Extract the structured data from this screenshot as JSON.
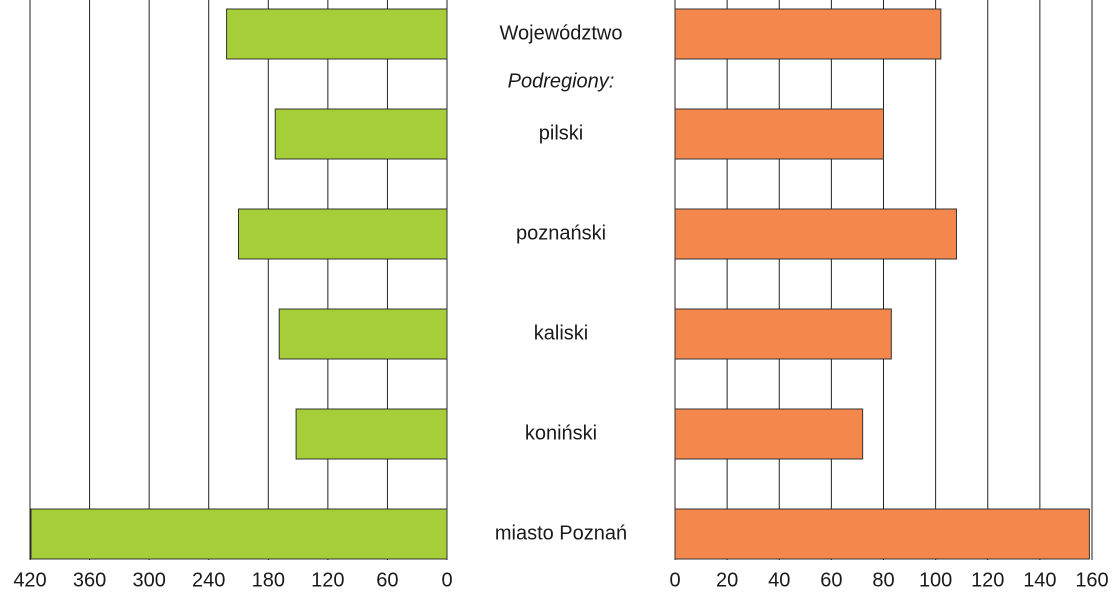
{
  "chart_data": {
    "type": "bar",
    "orientation": "horizontal",
    "categories": [
      "Województwo",
      "Podregiony:",
      "pilski",
      "poznański",
      "kaliski",
      "koniński",
      "miasto Poznań"
    ],
    "series": [
      {
        "color": "#a6ce39",
        "values": [
          222,
          null,
          173,
          210,
          169,
          152,
          419
        ],
        "axis": "x"
      },
      {
        "color": "#f4874b",
        "values": [
          102,
          null,
          80,
          108,
          83,
          72,
          159
        ],
        "axis": "x2"
      }
    ],
    "xlim": [
      0,
      420
    ],
    "xticks": [
      0,
      60,
      120,
      180,
      240,
      300,
      360,
      420
    ],
    "x_inverted": true,
    "x2lim": [
      0,
      160
    ],
    "x2ticks": [
      0,
      20,
      40,
      60,
      80,
      100,
      120,
      140,
      160
    ],
    "grid": true
  }
}
